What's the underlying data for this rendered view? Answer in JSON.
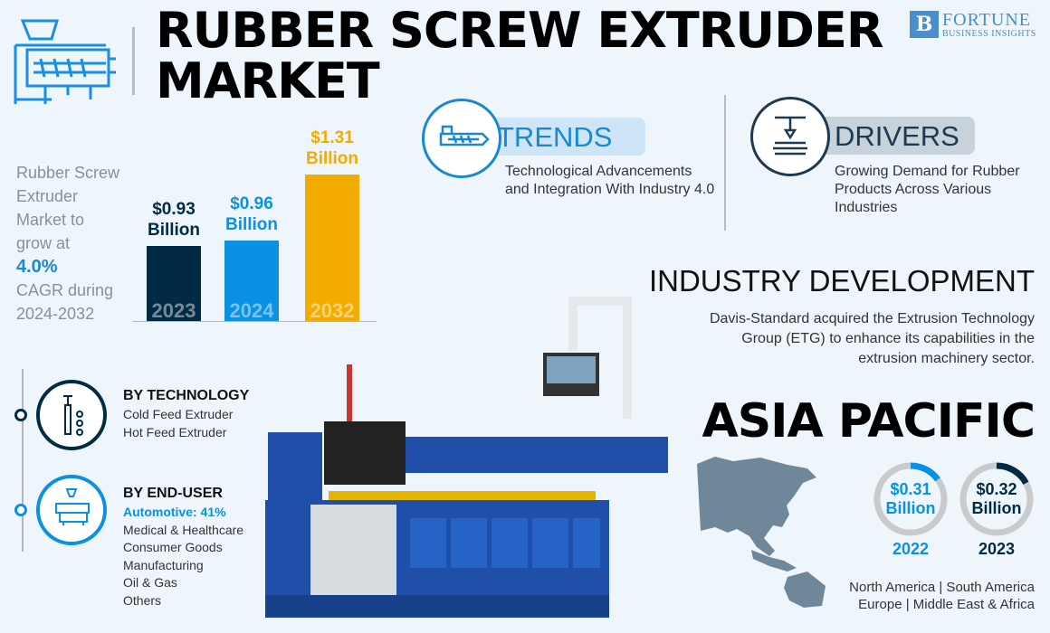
{
  "header": {
    "title_line1": "RUBBER SCREW EXTRUDER",
    "title_line2": "MARKET",
    "logo_name": "FORTUNE",
    "logo_sub": "BUSINESS INSIGHTS",
    "icon": "extruder-icon"
  },
  "summary": {
    "line1": "Rubber Screw",
    "line2": "Extruder",
    "line3": "Market to",
    "line4": "grow at",
    "cagr": "4.0%",
    "line5": "CAGR during",
    "line6": "2024-2032"
  },
  "chart_data": {
    "type": "bar",
    "categories": [
      "2023",
      "2024",
      "2032"
    ],
    "values": [
      0.93,
      0.96,
      1.31
    ],
    "labels_value": [
      "$0.93",
      "$0.96",
      "$1.31"
    ],
    "unit_label": "Billion",
    "colors": [
      "#012b45",
      "#0a91e3",
      "#f2ac00"
    ]
  },
  "trends": {
    "label": "TRENDS",
    "text": "Technological Advancements and Integration With Industry 4.0",
    "icon": "extruder-screw-icon"
  },
  "drivers": {
    "label": "DRIVERS",
    "text": "Growing Demand for Rubber Products Across Various Industries",
    "icon": "3d-printer-icon"
  },
  "industry": {
    "title": "INDUSTRY DEVELOPMENT",
    "text_line1": "Davis-Standard acquired the Extrusion Technology",
    "text_line2": "Group (ETG) to enhance its  capabilities in the",
    "text_line3": "extrusion machinery sector."
  },
  "region": {
    "title": "ASIA PACIFIC",
    "donuts": [
      {
        "value": "$0.31",
        "unit": "Billion",
        "year": "2022",
        "color": "#0a91e3",
        "fill": 0.15
      },
      {
        "value": "$0.32",
        "unit": "Billion",
        "year": "2023",
        "color": "#012b45",
        "fill": 0.17
      }
    ],
    "others_line1": "North America  |  South America",
    "others_line2": "Europe  |  Middle East & Africa"
  },
  "segments": [
    {
      "title": "BY TECHNOLOGY",
      "items": [
        "Cold Feed Extruder",
        "Hot Feed Extruder"
      ],
      "color": "#012b45"
    },
    {
      "title": "BY END-USER",
      "highlight": "Automotive: 41%",
      "items": [
        "Medical & Healthcare",
        "Consumer Goods",
        "Manufacturing",
        "Oil & Gas",
        "Others"
      ],
      "color": "#0a91e3"
    }
  ]
}
